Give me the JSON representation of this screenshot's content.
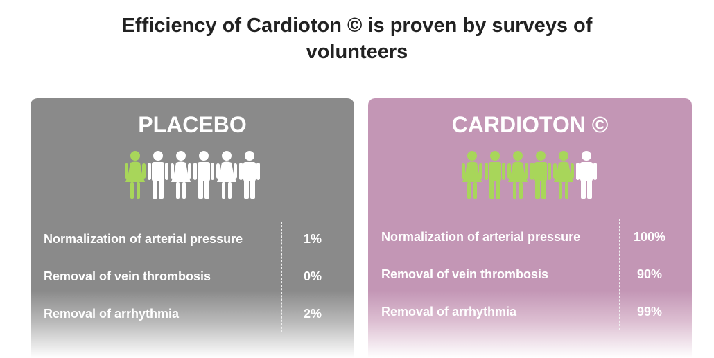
{
  "heading": {
    "line1": "Efficiency of Cardioton © is proven by surveys of",
    "line2": "volunteers"
  },
  "colors": {
    "placebo_bg": "#8a8a8a",
    "cardioton_bg": "#c396b5",
    "figure_green": "#a8d65a",
    "figure_white": "#ffffff"
  },
  "cards": [
    {
      "title": "PLACEBO",
      "figures": [
        {
          "type": "female",
          "color": "green"
        },
        {
          "type": "male",
          "color": "white"
        },
        {
          "type": "female",
          "color": "white"
        },
        {
          "type": "male",
          "color": "white"
        },
        {
          "type": "female",
          "color": "white"
        },
        {
          "type": "male",
          "color": "white"
        }
      ],
      "rows": [
        {
          "label": "Normalization of arterial pressure",
          "value": "1%"
        },
        {
          "label": "Removal of vein thrombosis",
          "value": "0%"
        },
        {
          "label": "Removal of arrhythmia",
          "value": "2%"
        }
      ]
    },
    {
      "title": "CARDIOTON ©",
      "figures": [
        {
          "type": "female",
          "color": "green"
        },
        {
          "type": "male",
          "color": "green"
        },
        {
          "type": "female",
          "color": "green"
        },
        {
          "type": "male",
          "color": "green"
        },
        {
          "type": "female",
          "color": "green"
        },
        {
          "type": "male",
          "color": "white"
        }
      ],
      "rows": [
        {
          "label": "Normalization of arterial pressure",
          "value": "100%"
        },
        {
          "label": "Removal of vein thrombosis",
          "value": "90%"
        },
        {
          "label": "Removal of arrhythmia",
          "value": "99%"
        }
      ]
    }
  ]
}
